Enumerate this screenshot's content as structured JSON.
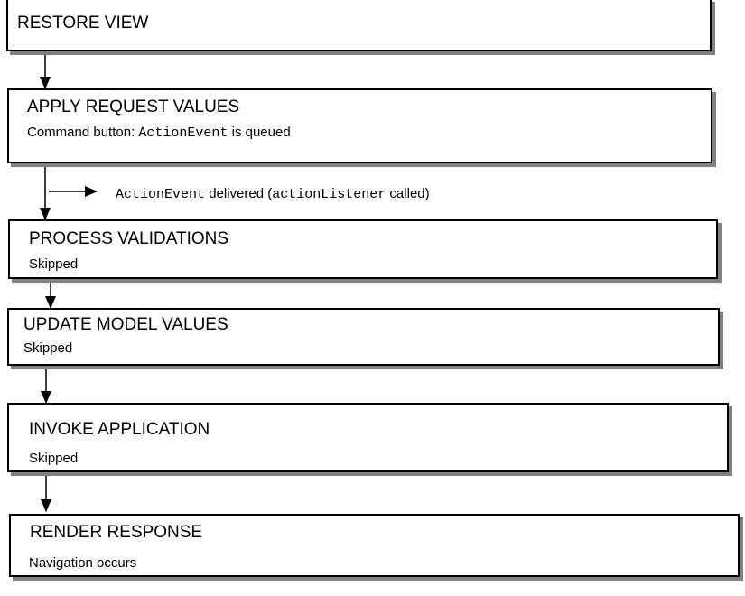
{
  "phases": [
    {
      "title": "RESTORE VIEW"
    },
    {
      "title": "APPLY REQUEST VALUES",
      "sub_pre": "Command button: ",
      "sub_code": "ActionEvent",
      "sub_post": " is queued"
    },
    {
      "title": "PROCESS VALIDATIONS",
      "sub": "Skipped"
    },
    {
      "title": "UPDATE MODEL VALUES",
      "sub": "Skipped"
    },
    {
      "title": "INVOKE APPLICATION",
      "sub": "Skipped"
    },
    {
      "title": "RENDER RESPONSE",
      "sub": "Navigation occurs"
    }
  ],
  "event_note": {
    "code1": "ActionEvent",
    "text1": " delivered (",
    "code2": "actionListener",
    "text2": " called)"
  }
}
